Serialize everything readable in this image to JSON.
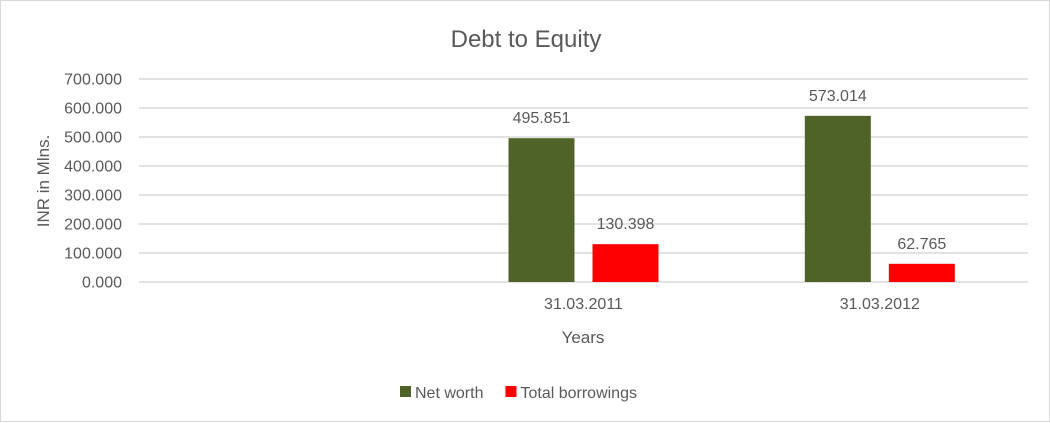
{
  "chart_data": {
    "type": "bar",
    "title": "Debt to Equity",
    "xlabel": "Years",
    "ylabel": "INR in Mlns.",
    "categories": [
      "",
      "31.03.2011",
      "31.03.2012"
    ],
    "series": [
      {
        "name": "Net worth",
        "color": "#4f6228",
        "values": [
          null,
          495.851,
          573.014
        ],
        "labels": [
          "",
          "495.851",
          "573.014"
        ]
      },
      {
        "name": "Total borrowings",
        "color": "#ff0000",
        "values": [
          null,
          130.398,
          62.765
        ],
        "labels": [
          "",
          "130.398",
          "62.765"
        ]
      }
    ],
    "ylim": [
      0,
      700
    ],
    "yticks": [
      "0.000",
      "100.000",
      "200.000",
      "300.000",
      "400.000",
      "500.000",
      "600.000",
      "700.000"
    ],
    "grid": true,
    "legend": "bottom"
  }
}
